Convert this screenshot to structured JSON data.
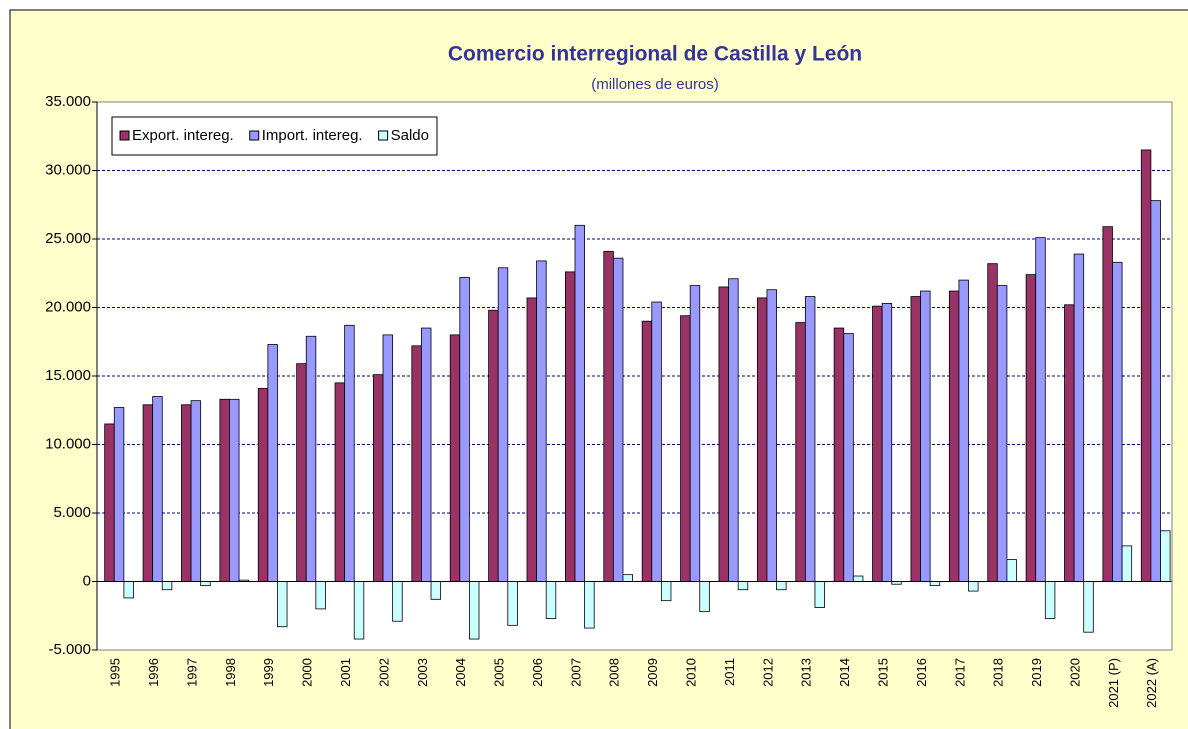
{
  "chart_data": {
    "type": "bar",
    "title": "Comercio interregional de Castilla y León",
    "subtitle": "(millones de euros)",
    "categories": [
      "1995",
      "1996",
      "1997",
      "1998",
      "1999",
      "2000",
      "2001",
      "2002",
      "2003",
      "2004",
      "2005",
      "2006",
      "2007",
      "2008",
      "2009",
      "2010",
      "2011",
      "2012",
      "2013",
      "2014",
      "2015",
      "2016",
      "2017",
      "2018",
      "2019",
      "2020",
      "2021 (P)",
      "2022 (A)"
    ],
    "series": [
      {
        "name": "Export. intereg.",
        "color": "#993366",
        "values": [
          11500,
          12900,
          12900,
          13300,
          14100,
          15900,
          14500,
          15100,
          17200,
          18000,
          19800,
          20700,
          22600,
          24100,
          19000,
          19400,
          21500,
          20700,
          18900,
          18500,
          20100,
          20800,
          21200,
          23200,
          22400,
          20200,
          25900,
          31500
        ]
      },
      {
        "name": "Import. intereg.",
        "color": "#9999ff",
        "values": [
          12700,
          13500,
          13200,
          13300,
          17300,
          17900,
          18700,
          18000,
          18500,
          22200,
          22900,
          23400,
          26000,
          23600,
          20400,
          21600,
          22100,
          21300,
          20800,
          18100,
          20300,
          21200,
          22000,
          21600,
          25100,
          23900,
          23300,
          27800
        ]
      },
      {
        "name": "Saldo",
        "color": "#ccffff",
        "values": [
          -1200,
          -600,
          -300,
          100,
          -3300,
          -2000,
          -4200,
          -2900,
          -1300,
          -4200,
          -3200,
          -2700,
          -3400,
          500,
          -1400,
          -2200,
          -600,
          -600,
          -1900,
          400,
          -200,
          -300,
          -700,
          1600,
          -2700,
          -3700,
          2600,
          3700
        ]
      }
    ],
    "ylim": [
      -5000,
      35000
    ],
    "yticks": [
      {
        "value": -5000,
        "label": "-5.000"
      },
      0,
      {
        "value": 5000,
        "label": "5.000"
      },
      {
        "value": 10000,
        "label": "10.000"
      },
      {
        "value": 15000,
        "label": "15.000"
      },
      {
        "value": 20000,
        "label": "20.000"
      },
      {
        "value": 25000,
        "label": "25.000"
      },
      {
        "value": 30000,
        "label": "30.000"
      },
      {
        "value": 35000,
        "label": "35.000"
      }
    ],
    "grid": true,
    "legend": "top-left"
  }
}
